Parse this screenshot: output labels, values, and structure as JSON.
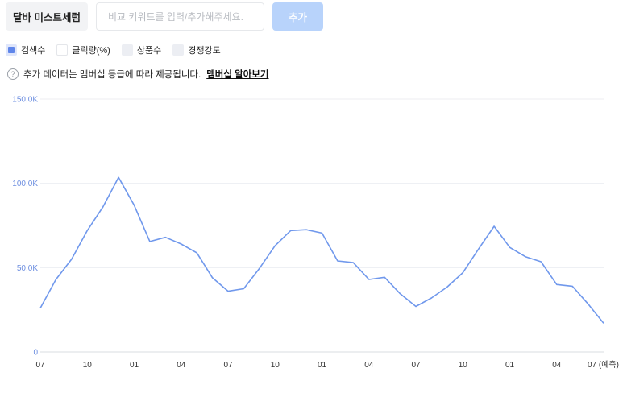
{
  "toolbar": {
    "keyword_chip": "달바 미스트세럼",
    "input_value": "",
    "input_placeholder": "비교 키워드를 입력/추가해주세요.",
    "add_label": "추가"
  },
  "legend": [
    {
      "label": "검색수",
      "active": true
    },
    {
      "label": "클릭량(%)",
      "active": false
    },
    {
      "label": "상품수",
      "active": false
    },
    {
      "label": "경쟁강도",
      "active": false
    }
  ],
  "notice": {
    "text": "추가 데이터는 멤버십 등급에 따라 제공됩니다.",
    "link": "멤버십 알아보기"
  },
  "colors": {
    "line": "#7098ec",
    "axis_y_text": "#6e8fe0",
    "axis_x_text": "#333333",
    "grid": "#eceef2",
    "button": "#b8d3fb"
  },
  "chart_data": {
    "type": "line",
    "y_ticks": [
      "150.0K",
      "100.0K",
      "50.0K",
      "0"
    ],
    "y_tick_values": [
      150000,
      100000,
      50000,
      0
    ],
    "ylim": [
      0,
      150000
    ],
    "x_tick_labels": [
      "07",
      "10",
      "01",
      "04",
      "07",
      "10",
      "01",
      "04",
      "07",
      "10",
      "01",
      "04",
      "07 (예측)"
    ],
    "x_tick_index": [
      0,
      3,
      6,
      9,
      12,
      15,
      18,
      21,
      24,
      27,
      30,
      33,
      36
    ],
    "series": [
      {
        "values": [
          26000,
          43000,
          55000,
          72000,
          86000,
          103500,
          87000,
          65500,
          68000,
          64000,
          58800,
          44000,
          36000,
          37500,
          49500,
          63000,
          72000,
          72500,
          70500,
          54000,
          53000,
          43000,
          44300,
          34500,
          27000,
          32000,
          38500,
          47000,
          61000,
          74500,
          62000,
          56500,
          53500,
          40000,
          39000,
          28500,
          17000
        ]
      }
    ]
  }
}
